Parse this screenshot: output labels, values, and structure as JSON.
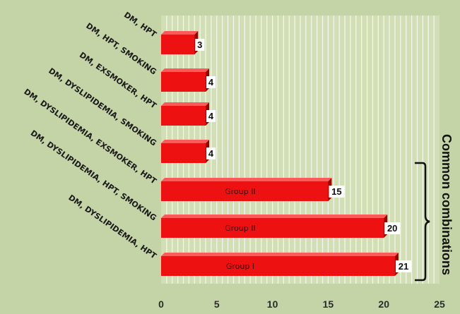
{
  "chart_data": {
    "type": "bar",
    "orientation": "horizontal",
    "categories": [
      "DM, HPT",
      "DM, HPT, SMOKING",
      "DM, EXSMOKER, HPT",
      "DM, DYSLIPIDEMIA, SMOKING",
      "DM, DYSLIPIDEMIA, EXSMOKER, HPT",
      "DM, DYSLIPIDEMIA, HPT, SMOKING",
      "DM, DYSLIPIDEMIA, HPT"
    ],
    "values": [
      3,
      4,
      4,
      4,
      15,
      20,
      21
    ],
    "bar_text": [
      "",
      "",
      "",
      "",
      "Group II",
      "Group II",
      "Group I"
    ],
    "xlim": [
      0,
      25
    ],
    "xticks": [
      0,
      5,
      10,
      15,
      20,
      25
    ],
    "grid": true,
    "annotation": "Common combinations",
    "colors": {
      "bar": "#ee1111",
      "bar_top": "#ff5a5a",
      "bar_shadow": "#9a0000",
      "plot_background": "#d2dfb6",
      "gridline": "#f4f8ea",
      "background": "#c4d4a6"
    }
  }
}
